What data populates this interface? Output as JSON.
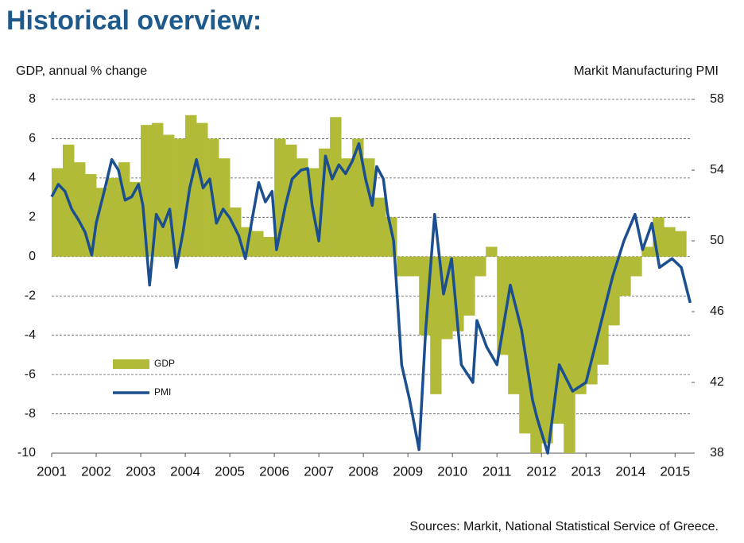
{
  "chart_data": {
    "type": "combo",
    "title": "Historical overview:",
    "y_label": "GDP, annual % change",
    "y2_label": "Markit Manufacturing PMI",
    "source": "Sources: Markit, National Statistical Service of Greece.",
    "xlim": [
      2001,
      2015.37
    ],
    "xticks": [
      2001,
      2002,
      2003,
      2004,
      2005,
      2006,
      2007,
      2008,
      2009,
      2010,
      2011,
      2012,
      2013,
      2014,
      2015
    ],
    "ylim": [
      -10,
      8
    ],
    "yticks": [
      -10,
      -8,
      -6,
      -4,
      -2,
      0,
      2,
      4,
      6,
      8
    ],
    "y2lim": [
      38,
      58
    ],
    "y2ticks": [
      38,
      42,
      46,
      50,
      54,
      58
    ],
    "grid": true,
    "series": [
      {
        "name": "GDP",
        "type": "bar",
        "color": "#b2bb38",
        "x": [
          2001,
          2001.25,
          2001.5,
          2001.75,
          2002,
          2002.25,
          2002.5,
          2002.75,
          2003,
          2003.25,
          2003.5,
          2003.75,
          2004,
          2004.25,
          2004.5,
          2004.75,
          2005,
          2005.25,
          2005.5,
          2005.75,
          2006,
          2006.25,
          2006.5,
          2006.75,
          2007,
          2007.25,
          2007.5,
          2007.75,
          2008,
          2008.25,
          2008.5,
          2008.75,
          2009,
          2009.25,
          2009.5,
          2009.75,
          2010,
          2010.25,
          2010.5,
          2010.75,
          2011,
          2011.25,
          2011.5,
          2011.75,
          2012,
          2012.25,
          2012.5,
          2012.75,
          2013,
          2013.25,
          2013.5,
          2013.75,
          2014,
          2014.25,
          2014.5,
          2014.75,
          2015
        ],
        "values": [
          4.5,
          5.7,
          4.8,
          4.2,
          3.5,
          4.0,
          4.8,
          3.8,
          6.7,
          6.8,
          6.2,
          6.0,
          7.2,
          6.8,
          6.0,
          5.0,
          2.5,
          1.5,
          1.3,
          1.0,
          6.0,
          5.7,
          5.0,
          4.5,
          5.5,
          7.1,
          5.0,
          6.0,
          5.0,
          3.0,
          2.0,
          -1.0,
          -1.0,
          -4.0,
          -7.0,
          -4.2,
          -3.8,
          -3.0,
          -1.0,
          0.5,
          -5.0,
          -7.0,
          -9.0,
          -10.0,
          -9.5,
          -8.5,
          -10.0,
          -7.0,
          -6.5,
          -5.5,
          -3.5,
          -2.0,
          -1.0,
          0.5,
          2.0,
          1.5,
          1.3
        ]
      },
      {
        "name": "PMI",
        "type": "line",
        "axis": "y2",
        "color": "#1b4f8f",
        "x": [
          2001.0,
          2001.15,
          2001.3,
          2001.45,
          2001.6,
          2001.75,
          2001.9,
          2002.0,
          2002.2,
          2002.35,
          2002.5,
          2002.65,
          2002.8,
          2002.95,
          2003.05,
          2003.2,
          2003.35,
          2003.5,
          2003.65,
          2003.8,
          2003.95,
          2004.1,
          2004.25,
          2004.4,
          2004.55,
          2004.7,
          2004.85,
          2005.0,
          2005.2,
          2005.35,
          2005.5,
          2005.65,
          2005.8,
          2005.95,
          2006.05,
          2006.25,
          2006.4,
          2006.6,
          2006.75,
          2006.85,
          2007.0,
          2007.15,
          2007.3,
          2007.45,
          2007.6,
          2007.75,
          2007.9,
          2008.05,
          2008.2,
          2008.3,
          2008.45,
          2008.55,
          2008.68,
          2008.86,
          2009.04,
          2009.25,
          2009.4,
          2009.6,
          2009.8,
          2009.98,
          2010.2,
          2010.46,
          2010.55,
          2010.77,
          2011.0,
          2011.3,
          2011.55,
          2011.8,
          2011.9,
          2012.14,
          2012.4,
          2012.7,
          2013.0,
          2013.3,
          2013.6,
          2013.85,
          2014.1,
          2014.27,
          2014.48,
          2014.65,
          2014.93,
          2015.14,
          2015.34
        ],
        "values": [
          52.5,
          53.2,
          52.8,
          51.8,
          51.2,
          50.5,
          49.2,
          51.0,
          53.0,
          54.6,
          54.0,
          52.3,
          52.5,
          53.2,
          52.0,
          47.5,
          51.5,
          50.8,
          51.8,
          48.5,
          50.5,
          53.0,
          54.6,
          53.0,
          53.5,
          51.0,
          51.8,
          51.3,
          50.3,
          49.0,
          51.2,
          53.3,
          52.2,
          52.8,
          49.5,
          52.0,
          53.5,
          54.0,
          54.1,
          52.0,
          50.0,
          54.8,
          53.5,
          54.3,
          53.8,
          54.5,
          55.5,
          53.5,
          52.0,
          54.2,
          53.5,
          51.5,
          50.0,
          43.0,
          41.0,
          38.2,
          45.0,
          51.5,
          47.0,
          49.0,
          43.0,
          42.0,
          45.5,
          44.0,
          43.0,
          47.5,
          45.0,
          41.0,
          40.0,
          38.0,
          43.0,
          41.5,
          42.0,
          45.0,
          48.0,
          50.0,
          51.5,
          49.5,
          51.0,
          48.5,
          49.0,
          48.5,
          46.5
        ]
      }
    ]
  }
}
